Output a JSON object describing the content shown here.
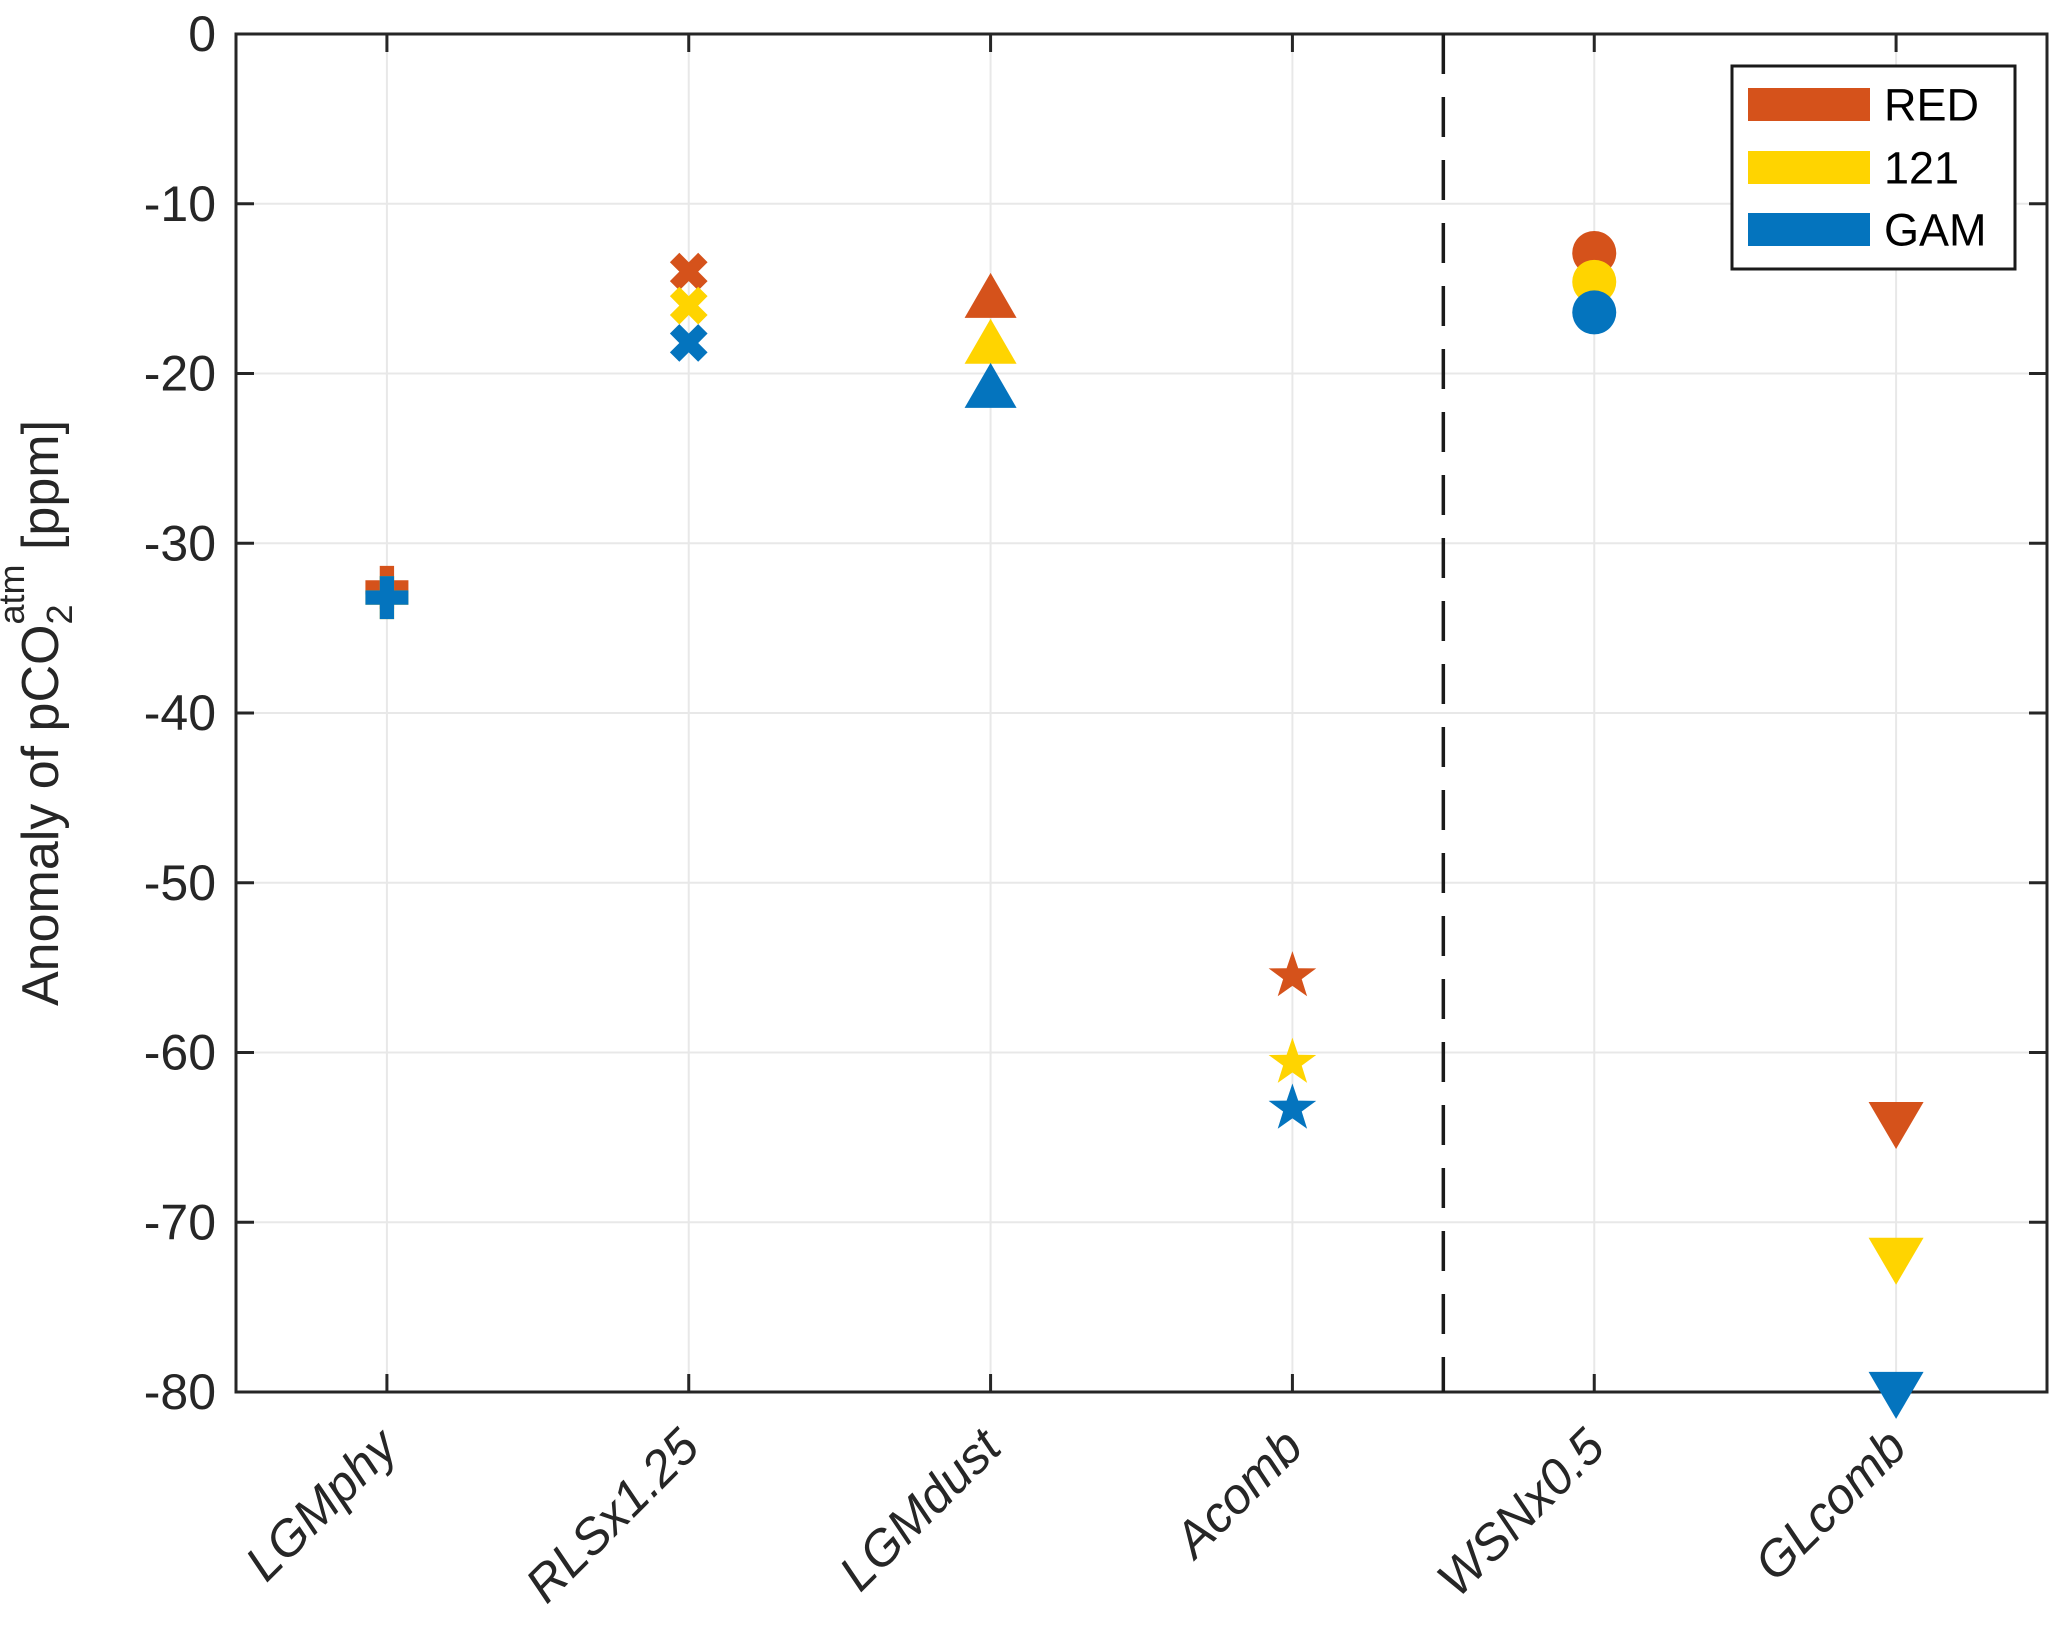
{
  "figure": {
    "background": "#FFFFFF",
    "kind": "matlab-style scatter figure"
  },
  "chart_data": {
    "type": "scatter",
    "title": "",
    "ylabel": "Anomaly of pCO2^atm [ppm]",
    "ylabel_parts": {
      "prefix": "Anomaly of pCO",
      "sub": "2",
      "sup": "atm",
      "suffix": " [ppm]"
    },
    "ylim": [
      -80,
      0
    ],
    "yticks": [
      0,
      -10,
      -20,
      -30,
      -40,
      -50,
      -60,
      -70,
      -80
    ],
    "ytick_labels": [
      "0",
      "-10",
      "-20",
      "-30",
      "-40",
      "-50",
      "-60",
      "-70",
      "-80"
    ],
    "categories": [
      "LGMphy",
      "RLSx1.25",
      "LGMdust",
      "Acomb",
      "WSNx0.5",
      "GLcomb"
    ],
    "category_markers": [
      "plus",
      "x",
      "triangle-up",
      "star",
      "circle",
      "triangle-down"
    ],
    "x_tick_rotation_deg": 45,
    "grid": true,
    "separator": {
      "style": "dashed",
      "color": "#1A1A1A",
      "between_categories": [
        "Acomb",
        "WSNx0.5"
      ]
    },
    "series": [
      {
        "name": "RED",
        "color": "#D5521B",
        "values": [
          -32.6,
          -14.0,
          -15.4,
          -55.5,
          -12.9,
          -64.3
        ]
      },
      {
        "name": "121",
        "color": "#FFD400",
        "values": [
          -33.2,
          -16.0,
          -18.1,
          -60.6,
          -14.6,
          -72.3
        ]
      },
      {
        "name": "GAM",
        "color": "#0474BE",
        "values": [
          -33.2,
          -18.2,
          -20.7,
          -63.3,
          -16.4,
          -80.2
        ]
      }
    ],
    "legend": {
      "position": "top-right",
      "entries": [
        {
          "label": "RED",
          "color": "#D5521B"
        },
        {
          "label": "121",
          "color": "#FFD400"
        },
        {
          "label": "GAM",
          "color": "#0474BE"
        }
      ]
    },
    "axis_color": "#262626",
    "grid_color": "#E8E8E8"
  }
}
